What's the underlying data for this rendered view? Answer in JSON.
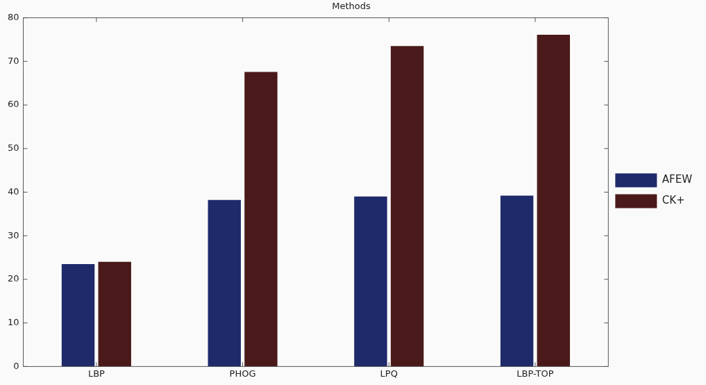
{
  "chart_data": {
    "type": "bar",
    "title": "Methods",
    "categories": [
      "LBP",
      "PHOG",
      "LPQ",
      "LBP-TOP"
    ],
    "series": [
      {
        "name": "AFEW",
        "color": "#1f2a6b",
        "values": [
          23.5,
          38.2,
          39.0,
          39.2
        ]
      },
      {
        "name": "CK+",
        "color": "#4a1a1a",
        "values": [
          24.0,
          67.6,
          73.5,
          76.1
        ]
      }
    ],
    "ylim": [
      0,
      80
    ],
    "yticks": [
      0,
      10,
      20,
      30,
      40,
      50,
      60,
      70,
      80
    ],
    "grid": false,
    "legend": "right"
  }
}
